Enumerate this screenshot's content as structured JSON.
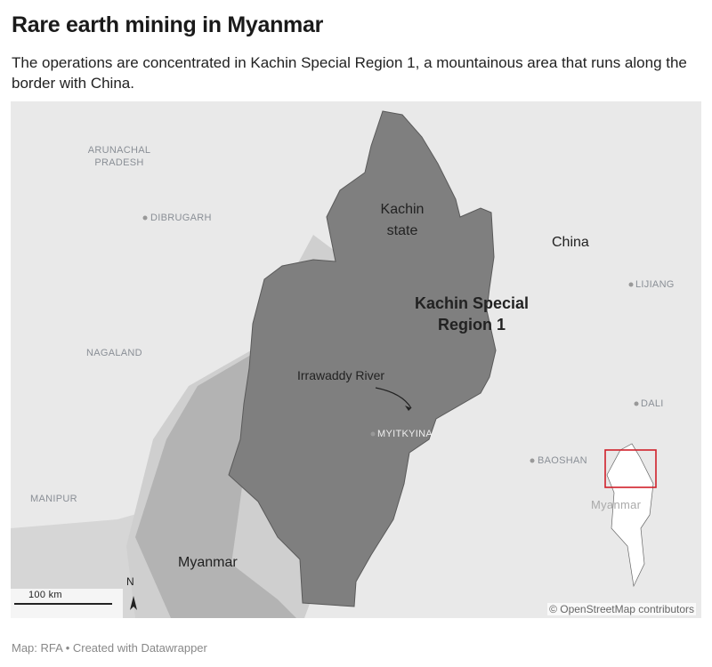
{
  "title": "Rare earth mining in Myanmar",
  "subtitle": "The operations are concentrated in Kachin Special Region 1, a mountainous area that runs along the border with China.",
  "map": {
    "labels": {
      "arunachal": "ARUNACHAL PRADESH",
      "dibrugarh": "DIBRUGARH",
      "nagaland": "NAGALAND",
      "manipur": "MANIPUR",
      "kachin_state": "Kachin state",
      "special_region": "Kachin Special Region 1",
      "river": "Irrawaddy River",
      "myitkyina": "MYITKYINA",
      "china": "China",
      "lijiang": "LIJIANG",
      "dali": "DALI",
      "baoshan": "BAOSHAN",
      "myanmar": "Myanmar",
      "inset_myanmar": "Myanmar"
    },
    "scale_bar": "100 km",
    "north": "N",
    "attribution": "© OpenStreetMap contributors",
    "colors": {
      "special_region": "#7d7d7d",
      "kachin_state": "#a9a9a9",
      "inset_box": "#d0202a"
    }
  },
  "footer": "Map: RFA • Created with Datawrapper"
}
